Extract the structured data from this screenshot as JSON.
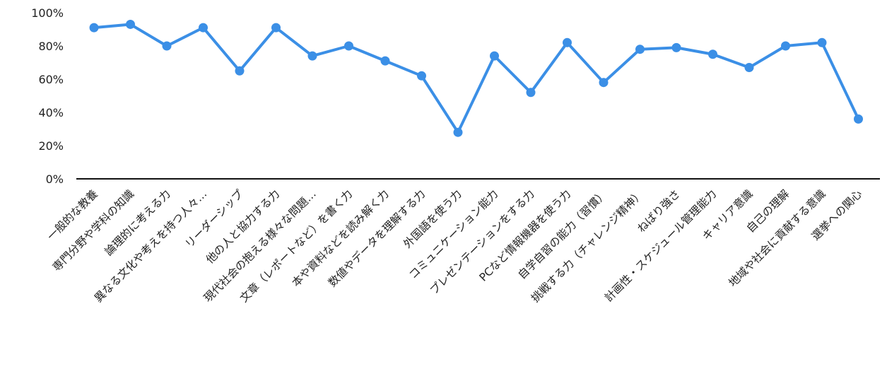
{
  "chart_data": {
    "type": "line",
    "title": "",
    "xlabel": "",
    "ylabel": "",
    "ylim": [
      0,
      100
    ],
    "yticks": [
      0,
      20,
      40,
      60,
      80,
      100
    ],
    "ytick_labels": [
      "0%",
      "20%",
      "40%",
      "60%",
      "80%",
      "100%"
    ],
    "grid": false,
    "legend": "none",
    "line_color": "#3b8fe6",
    "categories": [
      "一般的な教養",
      "専門分野や学科の知識",
      "論理的に考える力",
      "異なる文化や考えを持つ人々…",
      "リーダーシップ",
      "他の人と協力する力",
      "現代社会の抱える様々な問題…",
      "文章（レポートなど）を書く力",
      "本や資料などを読み解く力",
      "数値やデータを理解する力",
      "外国語を使う力",
      "コミュニケーション能力",
      "プレゼンテーションをする力",
      "PCなど情報機器を使う力",
      "自学自習の能力（習慣）",
      "挑戦する力（チャレンジ精神）",
      "ねばり強さ",
      "計画性・スケジュール管理能力",
      "キャリア意識",
      "自己の理解",
      "地域や社会に貢献する意識",
      "選挙への関心"
    ],
    "series": [
      {
        "values": [
          91,
          93,
          80,
          91,
          65,
          91,
          74,
          80,
          71,
          62,
          28,
          74,
          52,
          82,
          58,
          78,
          79,
          75,
          67,
          80,
          82,
          36
        ]
      }
    ]
  }
}
